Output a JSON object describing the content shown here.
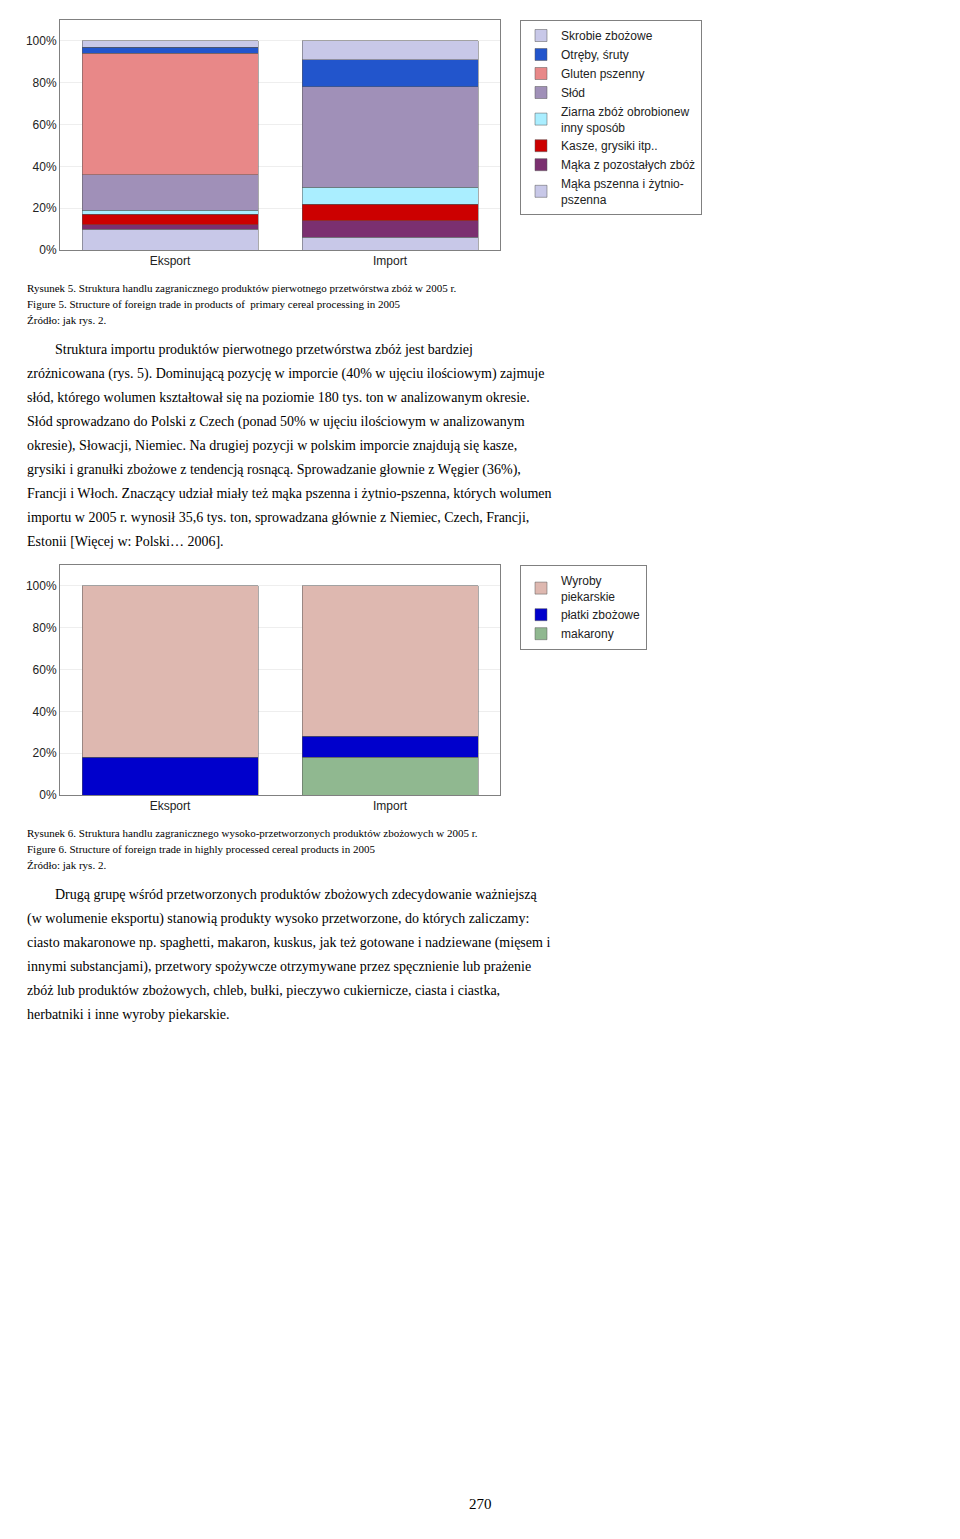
{
  "chart_data": [
    {
      "type": "bar",
      "stacked": true,
      "grid": true,
      "categories": [
        "Eksport",
        "Import"
      ],
      "series": [
        {
          "name": "Mąka pszenna i żytnio-\npszenna",
          "color": "#C8C8E8",
          "values": [
            10,
            6
          ]
        },
        {
          "name": "Mąka z pozostałych zbóż",
          "color": "#7B3070",
          "values": [
            2,
            8
          ]
        },
        {
          "name": "Kasze, grysiki itp..",
          "color": "#CC0000",
          "values": [
            5,
            8
          ]
        },
        {
          "name": "Ziarna zbóż obrobionew\ninny sposób",
          "color": "#AAEEFF",
          "values": [
            2,
            8
          ]
        },
        {
          "name": "Słód",
          "color": "#A090B8",
          "values": [
            17,
            48
          ]
        },
        {
          "name": "Gluten pszenny",
          "color": "#E88888",
          "values": [
            58,
            0
          ]
        },
        {
          "name": "Otręby, śruty",
          "color": "#2255CC",
          "values": [
            3,
            13
          ]
        },
        {
          "name": "Skrobie zbożowe",
          "color": "#C8C8E8",
          "values": [
            3,
            9
          ]
        }
      ],
      "ylim": [
        0,
        110
      ],
      "yticks": [
        {
          "value": 0,
          "label": "0%"
        },
        {
          "value": 20,
          "label": "20%"
        },
        {
          "value": 40,
          "label": "40%"
        },
        {
          "value": 60,
          "label": "60%"
        },
        {
          "value": 80,
          "label": "80%"
        },
        {
          "value": 100,
          "label": "100%"
        }
      ],
      "annotations": [
        [
          "Rysunek 5. Struktura handlu zagranicznego produktów pierwotnego przetwórstwa zbóż w 2005 r.",
          "Figure 5. Structure of foreign trade in products of  primary cereal processing in 2005",
          "Źródło: jak rys. 2."
        ],
        [
          "        Struktura importu produktów pierwotnego przetwórstwa zbóż jest bardziej",
          "zróżnicowana (rys. 5). Dominującą pozycję w imporcie (40% w ujęciu ilościowym) zajmuje",
          "słód, którego wolumen kształtował się na poziomie 180 tys. ton w analizowanym okresie.",
          "Słód sprowadzano do Polski z Czech (ponad 50% w ujęciu ilościowym w analizowanym",
          "okresie), Słowacji, Niemiec. Na drugiej pozycji w polskim imporcie znajdują się kasze,",
          "grysiki i granułki zbożowe z tendencją rosnącą. Sprowadzanie głownie z Węgier (36%),",
          "Francji i Włoch. Znaczący udział miały też mąka pszenna i żytnio-pszenna, których wolumen",
          "importu w 2005 r. wynosił 35,6 tys. ton, sprowadzana głównie z Niemiec, Czech, Francji,",
          "Estonii [Więcej w: Polski… 2006]."
        ]
      ]
    },
    {
      "type": "bar",
      "stacked": true,
      "grid": true,
      "categories": [
        "Eksport",
        "Import"
      ],
      "series": [
        {
          "name": "makarony",
          "color": "#90B890",
          "values": [
            0,
            18
          ]
        },
        {
          "name": "płatki zbożowe",
          "color": "#0000CC",
          "values": [
            18,
            10
          ]
        },
        {
          "name": "Wyroby\npiekarskie",
          "color": "#DEB8B0",
          "values": [
            82,
            72
          ]
        }
      ],
      "ylim": [
        0,
        110
      ],
      "yticks": [
        {
          "value": 0,
          "label": "0%"
        },
        {
          "value": 20,
          "label": "20%"
        },
        {
          "value": 40,
          "label": "40%"
        },
        {
          "value": 60,
          "label": "60%"
        },
        {
          "value": 80,
          "label": "80%"
        },
        {
          "value": 100,
          "label": "100%"
        }
      ],
      "annotations": [
        [
          "Rysunek 6. Struktura handlu zagranicznego wysoko-przetworzonych produktów zbożowych w 2005 r.",
          "Figure 6. Structure of foreign trade in highly processed cereal products in 2005",
          "Źródło: jak rys. 2."
        ],
        [
          "        Drugą grupę wśród przetworzonych produktów zbożowych zdecydowanie ważniejszą",
          "(w wolumenie eksportu) stanowią produkty wysoko przetworzone, do których zaliczamy:",
          "ciasto makaronowe np. spaghetti, makaron, kuskus, jak też gotowane i nadziewane (mięsem i",
          "innymi substancjami), przetwory spożywcze otrzymywane przez spęcznienie lub prażenie",
          "zbóż lub produktów zbożowych, chleb, bułki, pieczywo cukiernicze, ciasta i ciastka,",
          "herbatniki i inne wyroby piekarskie."
        ],
        [
          "270"
        ]
      ]
    }
  ]
}
